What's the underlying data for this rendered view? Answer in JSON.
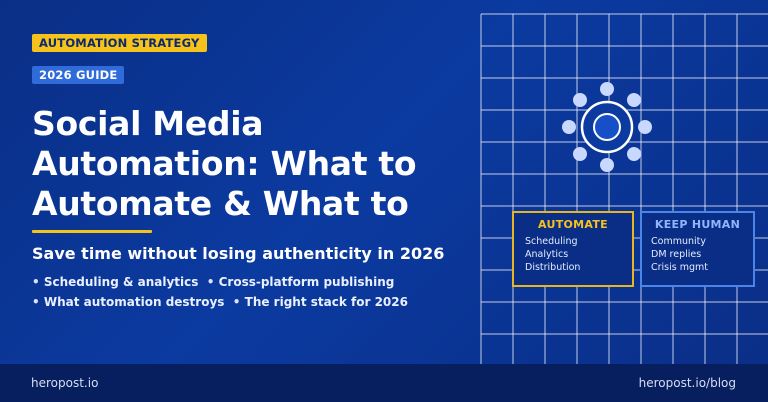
{
  "badges": {
    "strategy": "AUTOMATION STRATEGY",
    "guide": "2026 GUIDE"
  },
  "headline": {
    "line1": "Social Media",
    "line2": "Automation: What to",
    "line3": "Automate & What to"
  },
  "subtitle": "Save time without losing authenticity in 2026",
  "bullets": {
    "row1": [
      "Scheduling & analytics",
      "Cross-platform publishing"
    ],
    "row2": [
      "What automation destroys",
      "The right stack for 2026"
    ]
  },
  "panel": {
    "automate": {
      "title": "AUTOMATE",
      "items": [
        "Scheduling",
        "Analytics",
        "Distribution"
      ]
    },
    "keep_human": {
      "title": "KEEP HUMAN",
      "items": [
        "Community",
        "DM replies",
        "Crisis mgmt"
      ]
    }
  },
  "footer": {
    "left": "heropost.io",
    "right": "heropost.io/blog"
  },
  "colors": {
    "background": "#0b3aa0",
    "accent_yellow": "#f6c21c",
    "accent_blue": "#2f6bd9",
    "footer": "#071f5e"
  },
  "icons": {
    "hub": "hub-network-icon"
  }
}
